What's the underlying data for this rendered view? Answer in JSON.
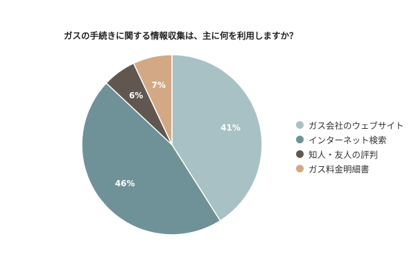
{
  "chart_data": {
    "type": "pie",
    "title": "ガスの手続きに関する情報収集は、主に何を利用しますか？",
    "categories": [
      "ガス会社のウェブサイト",
      "インターネット検索",
      "知人・友人の評判",
      "ガス料金明細書"
    ],
    "values": [
      41,
      46,
      6,
      7
    ],
    "value_labels": [
      "41%",
      "46%",
      "6%",
      "7%"
    ],
    "colors": [
      "#a8c1c4",
      "#6e9297",
      "#625750",
      "#d2a984"
    ],
    "legend_position": "right"
  }
}
